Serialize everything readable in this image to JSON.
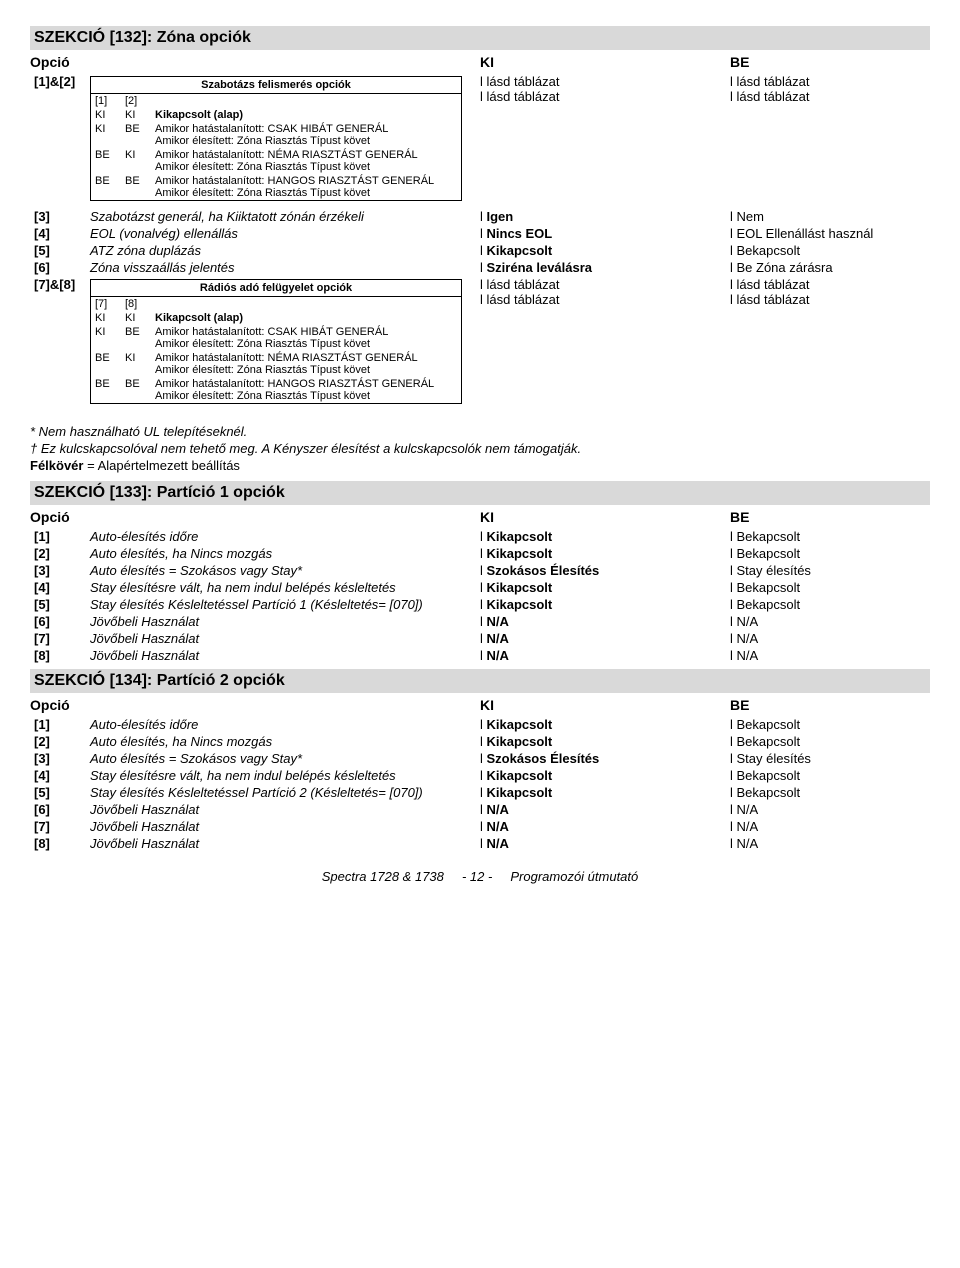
{
  "section132": {
    "title": "SZEKCIÓ [132]: Zóna opciók",
    "header": {
      "c1": "Opció",
      "c2": "",
      "c3": "KI",
      "c4": "BE"
    },
    "rows12": {
      "idx": "[1]&[2]",
      "right": [
        {
          "ki": "l lásd táblázat",
          "be": "l lásd táblázat"
        },
        {
          "ki": "l lásd táblázat",
          "be": "l lásd táblázat"
        }
      ],
      "subtable": {
        "title": "Szabotázs felismerés opciók",
        "cols": [
          "[1]",
          "[2]",
          ""
        ],
        "rows": [
          [
            "KI",
            "KI",
            "Kikapcsolt (alap)"
          ],
          [
            "KI",
            "BE",
            "Amikor hatástalanított: CSAK HIBÁT GENERÁL\nAmikor élesített: Zóna Riasztás Típust követ"
          ],
          [
            "BE",
            "KI",
            "Amikor hatástalanított: NÉMA RIASZTÁST GENERÁL\nAmikor élesített: Zóna Riasztás Típust követ"
          ],
          [
            "BE",
            "BE",
            "Amikor hatástalanított: HANGOS RIASZTÁST GENERÁL\nAmikor élesített: Zóna Riasztás Típust követ"
          ]
        ]
      }
    },
    "rows3to6": [
      {
        "idx": "[3]",
        "desc": "Szabotázst generál, ha Kiiktatott zónán érzékeli",
        "ki": "l Igen",
        "be": "l Nem"
      },
      {
        "idx": "[4]",
        "desc": "EOL (vonalvég) ellenállás",
        "ki": "l Nincs EOL",
        "be": "l EOL Ellenállást használ"
      },
      {
        "idx": "[5]",
        "desc": "ATZ zóna duplázás",
        "ki": "l Kikapcsolt",
        "be": "l Bekapcsolt"
      },
      {
        "idx": "[6]",
        "desc": "Zóna visszaállás jelentés",
        "ki": "l Sziréna leválásra",
        "be": "l Be Zóna zárásra"
      }
    ],
    "rows78": {
      "idx": "[7]&[8]",
      "right": [
        {
          "ki": "l lásd táblázat",
          "be": "l lásd táblázat"
        },
        {
          "ki": "l lásd táblázat",
          "be": "l lásd táblázat"
        }
      ],
      "subtable": {
        "title": "Rádiós adó felügyelet opciók",
        "cols": [
          "[7]",
          "[8]",
          ""
        ],
        "rows": [
          [
            "KI",
            "KI",
            "Kikapcsolt (alap)"
          ],
          [
            "KI",
            "BE",
            "Amikor hatástalanított: CSAK HIBÁT GENERÁL\nAmikor élesített: Zóna Riasztás Típust követ"
          ],
          [
            "BE",
            "KI",
            "Amikor hatástalanított: NÉMA RIASZTÁST GENERÁL\nAmikor élesített: Zóna Riasztás Típust követ"
          ],
          [
            "BE",
            "BE",
            "Amikor hatástalanított: HANGOS RIASZTÁST GENERÁL\nAmikor élesített: Zóna Riasztás Típust követ"
          ]
        ]
      }
    }
  },
  "notes": {
    "l1": "* Nem használható UL telepítéseknél.",
    "l2": "† Ez kulcskapcsolóval nem tehető meg. A Kényszer élesítést a kulcskapcsolók nem támogatják.",
    "l3_prefix": "Félkövér",
    "l3_rest": " = Alapértelmezett beállítás"
  },
  "section133": {
    "title": "SZEKCIÓ [133]: Partíció 1 opciók",
    "header": {
      "c1": "Opció",
      "c3": "KI",
      "c4": "BE"
    },
    "rows": [
      {
        "idx": "[1]",
        "desc": "Auto-élesítés időre",
        "ki": "l Kikapcsolt",
        "be": "l Bekapcsolt"
      },
      {
        "idx": "[2]",
        "desc": "Auto élesítés, ha Nincs mozgás",
        "ki": "l Kikapcsolt",
        "be": "l Bekapcsolt"
      },
      {
        "idx": "[3]",
        "desc": "Auto élesítés = Szokásos vagy Stay*",
        "ki": "l Szokásos Élesítés",
        "be": "l Stay élesítés"
      },
      {
        "idx": "[4]",
        "desc": "Stay élesítésre vált, ha nem indul belépés késleltetés",
        "ki": "l Kikapcsolt",
        "be": "l Bekapcsolt"
      },
      {
        "idx": "[5]",
        "desc": "Stay élesítés Késleltetéssel Partíció 1 (Késleltetés= [070])",
        "ki": "l Kikapcsolt",
        "be": "l Bekapcsolt"
      },
      {
        "idx": "[6]",
        "desc": "Jövőbeli Használat",
        "ki": "l N/A",
        "be": "l N/A"
      },
      {
        "idx": "[7]",
        "desc": "Jövőbeli Használat",
        "ki": "l N/A",
        "be": "l N/A"
      },
      {
        "idx": "[8]",
        "desc": "Jövőbeli Használat",
        "ki": "l N/A",
        "be": "l N/A"
      }
    ]
  },
  "section134": {
    "title": "SZEKCIÓ [134]: Partíció 2 opciók",
    "header": {
      "c1": "Opció",
      "c3": "KI",
      "c4": "BE"
    },
    "rows": [
      {
        "idx": "[1]",
        "desc": "Auto-élesítés időre",
        "ki": "l Kikapcsolt",
        "be": "l Bekapcsolt"
      },
      {
        "idx": "[2]",
        "desc": "Auto élesítés, ha Nincs mozgás",
        "ki": "l Kikapcsolt",
        "be": "l Bekapcsolt"
      },
      {
        "idx": "[3]",
        "desc": "Auto élesítés = Szokásos vagy Stay*",
        "ki": "l Szokásos Élesítés",
        "be": "l Stay élesítés"
      },
      {
        "idx": "[4]",
        "desc": "Stay élesítésre vált, ha nem indul belépés késleltetés",
        "ki": "l Kikapcsolt",
        "be": "l Bekapcsolt"
      },
      {
        "idx": "[5]",
        "desc": "Stay élesítés Késleltetéssel Partíció 2 (Késleltetés= [070])",
        "ki": "l Kikapcsolt",
        "be": "l Bekapcsolt"
      },
      {
        "idx": "[6]",
        "desc": "Jövőbeli Használat",
        "ki": "l N/A",
        "be": "l N/A"
      },
      {
        "idx": "[7]",
        "desc": "Jövőbeli Használat",
        "ki": "l N/A",
        "be": "l N/A"
      },
      {
        "idx": "[8]",
        "desc": "Jövőbeli Használat",
        "ki": "l N/A",
        "be": "l N/A"
      }
    ]
  },
  "footer": {
    "left": "Spectra 1728 & 1738",
    "mid": "- 12 -",
    "right": "Programozói útmutató"
  }
}
